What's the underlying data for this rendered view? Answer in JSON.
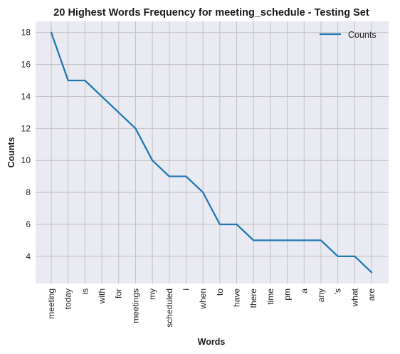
{
  "chart_data": {
    "type": "line",
    "title": "20 Highest Words Frequency for meeting_schedule - Testing Set",
    "xlabel": "Words",
    "ylabel": "Counts",
    "categories": [
      "meeting",
      "today",
      "is",
      "with",
      "for",
      "meetings",
      "my",
      "scheduled",
      "i",
      "when",
      "to",
      "have",
      "there",
      "time",
      "pm",
      "a",
      "any",
      "'s",
      "what",
      "are"
    ],
    "series": [
      {
        "name": "Counts",
        "values": [
          18,
          15,
          15,
          14,
          13,
          12,
          10,
          9,
          9,
          8,
          6,
          6,
          5,
          5,
          5,
          5,
          5,
          4,
          4,
          3
        ]
      }
    ],
    "yticks": [
      4,
      6,
      8,
      10,
      12,
      14,
      16,
      18
    ],
    "ylim": [
      2.3,
      18.7
    ],
    "grid": true,
    "legend": "top-right",
    "colors": {
      "line": "#1f77b4",
      "plot_bg": "#eaeaf2",
      "grid": "#c2c2c2"
    }
  }
}
